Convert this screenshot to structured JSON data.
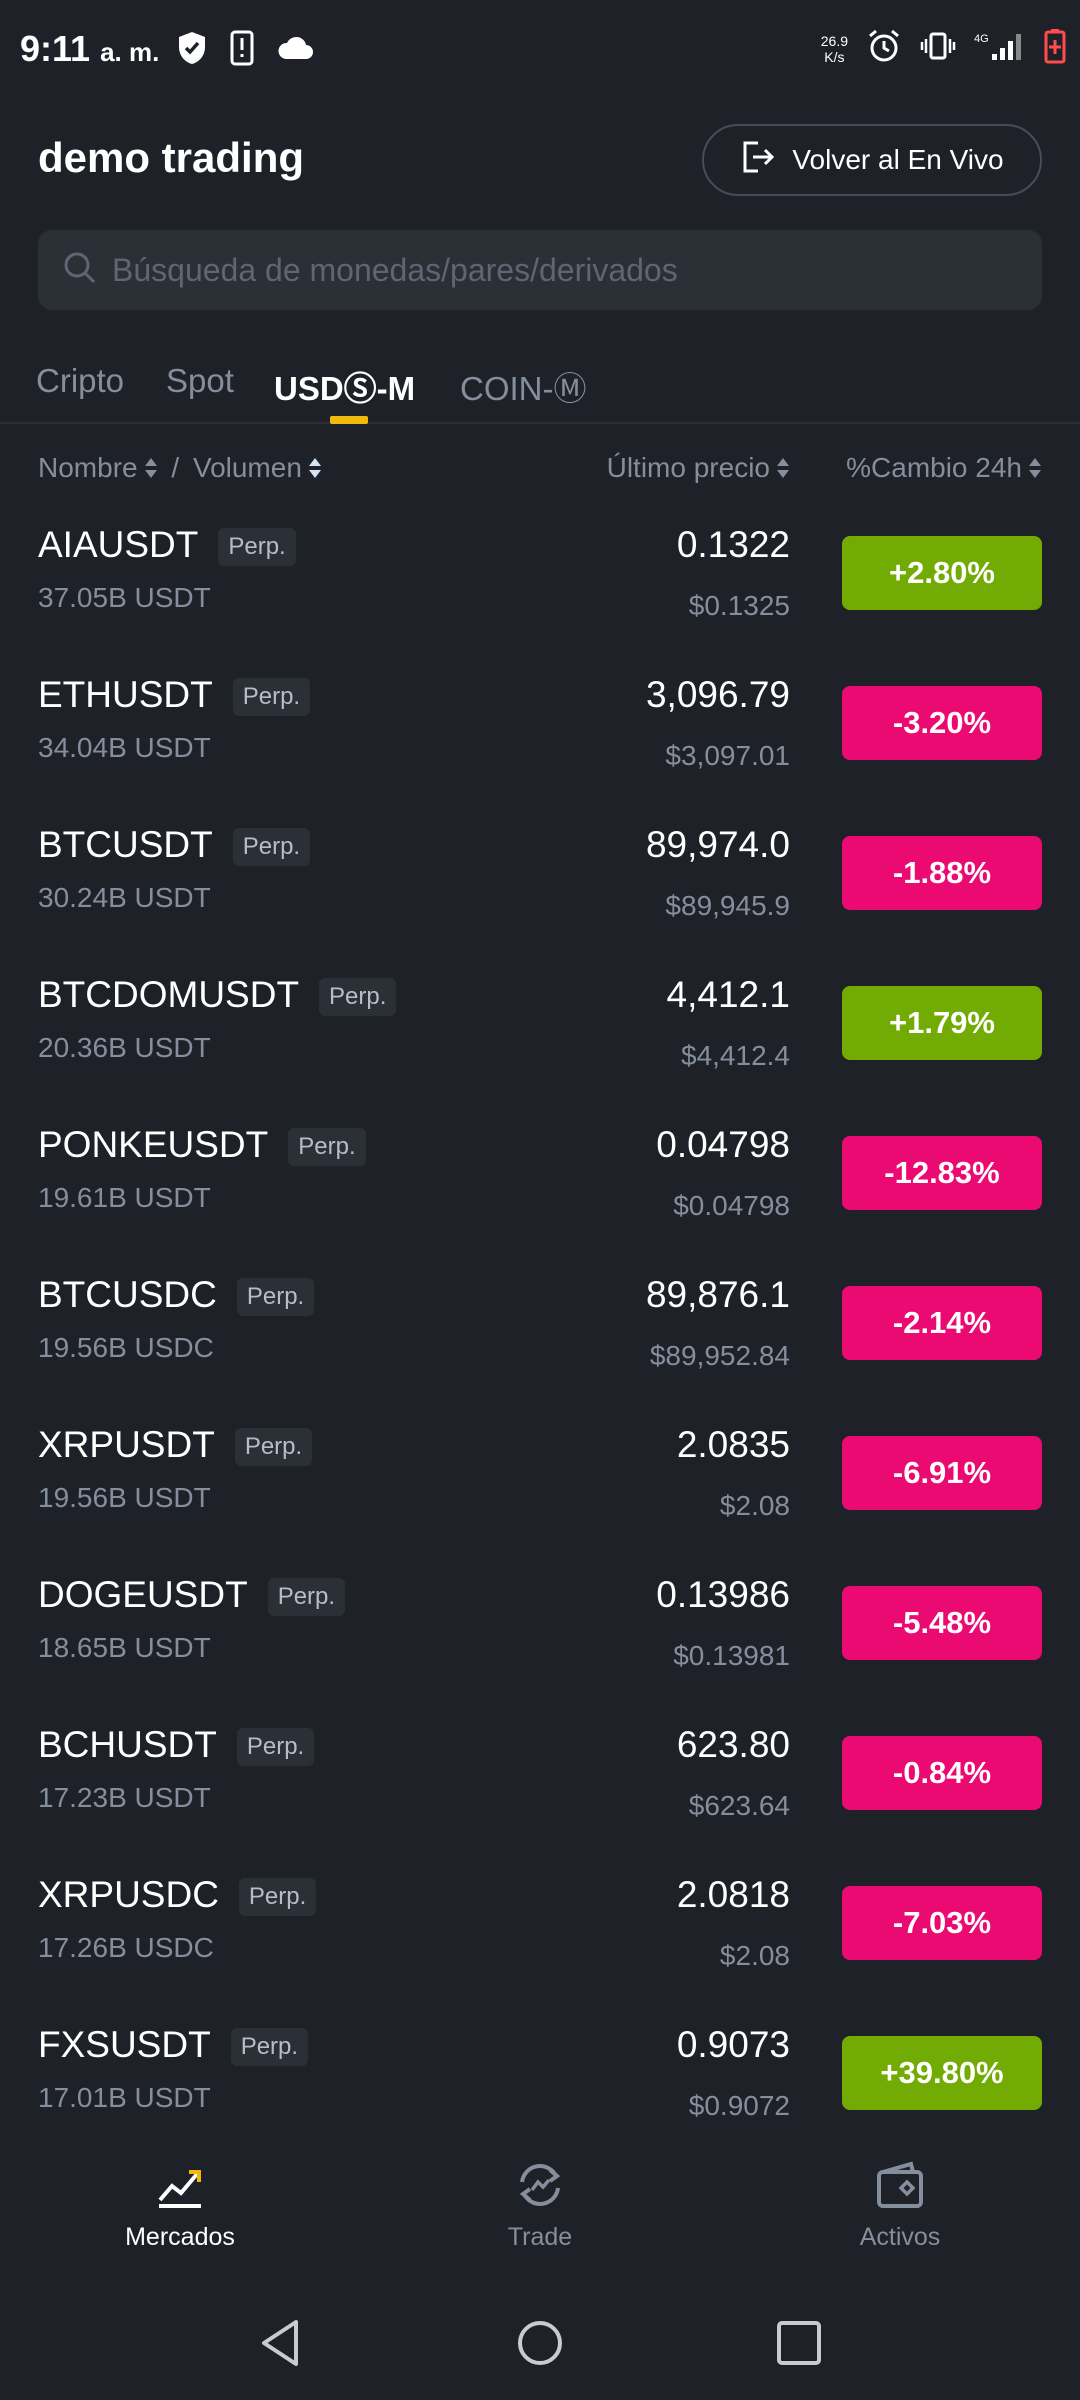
{
  "status_bar": {
    "time": "9:11",
    "ampm": "a. m.",
    "net_speed_value": "26.9",
    "net_speed_unit": "K/s",
    "icons": [
      "shield-check-icon",
      "sim-alert-icon",
      "cloud-icon",
      "alarm-icon",
      "vibrate-icon",
      "signal-4g-icon",
      "battery-low-icon"
    ]
  },
  "header": {
    "title": "demo trading",
    "live_button_label": "Volver al En Vivo"
  },
  "search": {
    "placeholder": "Búsqueda de monedas/pares/derivados"
  },
  "tabs": [
    {
      "label": "Cripto",
      "active": false
    },
    {
      "label": "Spot",
      "active": false
    },
    {
      "label": "USDⓈ-M",
      "active": true
    },
    {
      "label": "COIN-Ⓜ",
      "active": false
    }
  ],
  "columns": {
    "name": "Nombre",
    "separator": " / ",
    "volume": "Volumen",
    "last_price": "Último precio",
    "change": "%Cambio 24h"
  },
  "markets": [
    {
      "symbol": "AIAUSDT",
      "tag": "Perp.",
      "volume": "37.05B USDT",
      "price": "0.1322",
      "price_usd": "$0.1325",
      "change": "+2.80%",
      "direction": "up"
    },
    {
      "symbol": "ETHUSDT",
      "tag": "Perp.",
      "volume": "34.04B USDT",
      "price": "3,096.79",
      "price_usd": "$3,097.01",
      "change": "-3.20%",
      "direction": "down"
    },
    {
      "symbol": "BTCUSDT",
      "tag": "Perp.",
      "volume": "30.24B USDT",
      "price": "89,974.0",
      "price_usd": "$89,945.9",
      "change": "-1.88%",
      "direction": "down"
    },
    {
      "symbol": "BTCDOMUSDT",
      "tag": "Perp.",
      "volume": "20.36B USDT",
      "price": "4,412.1",
      "price_usd": "$4,412.4",
      "change": "+1.79%",
      "direction": "up"
    },
    {
      "symbol": "PONKEUSDT",
      "tag": "Perp.",
      "volume": "19.61B USDT",
      "price": "0.04798",
      "price_usd": "$0.04798",
      "change": "-12.83%",
      "direction": "down"
    },
    {
      "symbol": "BTCUSDC",
      "tag": "Perp.",
      "volume": "19.56B USDC",
      "price": "89,876.1",
      "price_usd": "$89,952.84",
      "change": "-2.14%",
      "direction": "down"
    },
    {
      "symbol": "XRPUSDT",
      "tag": "Perp.",
      "volume": "19.56B USDT",
      "price": "2.0835",
      "price_usd": "$2.08",
      "change": "-6.91%",
      "direction": "down"
    },
    {
      "symbol": "DOGEUSDT",
      "tag": "Perp.",
      "volume": "18.65B USDT",
      "price": "0.13986",
      "price_usd": "$0.13981",
      "change": "-5.48%",
      "direction": "down"
    },
    {
      "symbol": "BCHUSDT",
      "tag": "Perp.",
      "volume": "17.23B USDT",
      "price": "623.80",
      "price_usd": "$623.64",
      "change": "-0.84%",
      "direction": "down"
    },
    {
      "symbol": "XRPUSDC",
      "tag": "Perp.",
      "volume": "17.26B USDC",
      "price": "2.0818",
      "price_usd": "$2.08",
      "change": "-7.03%",
      "direction": "down"
    },
    {
      "symbol": "FXSUSDT",
      "tag": "Perp.",
      "volume": "17.01B USDT",
      "price": "0.9073",
      "price_usd": "$0.9072",
      "change": "+39.80%",
      "direction": "up"
    }
  ],
  "bottom_nav": [
    {
      "label": "Mercados",
      "icon": "chart-trend-icon",
      "active": true
    },
    {
      "label": "Trade",
      "icon": "trade-swap-icon",
      "active": false
    },
    {
      "label": "Activos",
      "icon": "wallet-icon",
      "active": false
    }
  ],
  "colors": {
    "background": "#1f2128",
    "up": "#73ab05",
    "down": "#ea0a71",
    "accent": "#f0b90b"
  }
}
